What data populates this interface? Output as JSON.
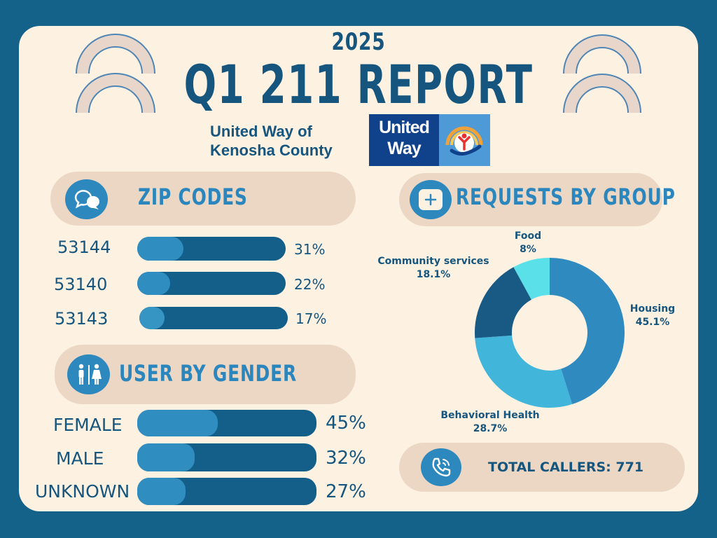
{
  "header": {
    "year": "2025",
    "title": "Q1 211 REPORT",
    "org_line1": "United Way of",
    "org_line2": "Kenosha County",
    "logo_line1": "United",
    "logo_line2": "Way"
  },
  "zip_section": {
    "heading": "ZIP CODES",
    "icon": "chat-bubbles-icon"
  },
  "gender_section": {
    "heading": "USER BY GENDER",
    "icon": "restroom-icon"
  },
  "requests_section": {
    "heading": "REQUESTS BY GROUP",
    "icon": "plus-icon"
  },
  "total": {
    "label": "TOTAL CALLERS: 771",
    "icon": "phone-icon"
  },
  "colors": {
    "background": "#14618a",
    "card": "#fdf1e2",
    "pill": "#ecd7c4",
    "navy": "#16567e",
    "bar_track": "#135f8a",
    "bar_fill": "#2f8dc0"
  },
  "chart_data": [
    {
      "type": "bar",
      "orientation": "horizontal",
      "title": "ZIP CODES",
      "categories": [
        "53144",
        "53140",
        "53143"
      ],
      "values": [
        31,
        22,
        17
      ],
      "labels": [
        "31%",
        "22%",
        "17%"
      ],
      "unit": "%"
    },
    {
      "type": "bar",
      "orientation": "horizontal",
      "title": "USER BY GENDER",
      "categories": [
        "FEMALE",
        "MALE",
        "UNKNOWN"
      ],
      "values": [
        45,
        32,
        27
      ],
      "labels": [
        "45%",
        "32%",
        "27%"
      ],
      "unit": "%"
    },
    {
      "type": "pie",
      "donut": true,
      "title": "REQUESTS BY GROUP",
      "categories": [
        "Housing",
        "Behavioral Health",
        "Community services",
        "Food"
      ],
      "values": [
        45.1,
        28.7,
        18.1,
        8
      ],
      "labels": [
        "45.1%",
        "28.7%",
        "18.1%",
        "8%"
      ],
      "colors": [
        "#2f8ac0",
        "#41b5da",
        "#185a84",
        "#5ae0e8"
      ]
    }
  ]
}
